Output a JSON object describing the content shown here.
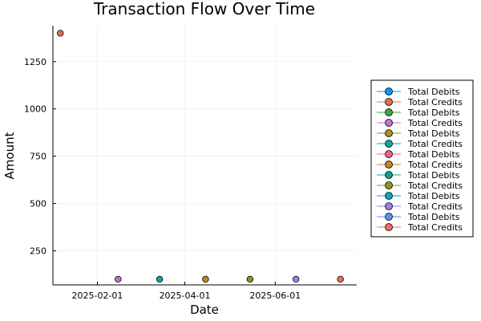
{
  "chart_data": {
    "type": "scatter",
    "title": "Transaction Flow Over Time",
    "xlabel": "Date",
    "ylabel": "Amount",
    "xlim": [
      "2025-01-02",
      "2025-07-26"
    ],
    "ylim": [
      70,
      1440
    ],
    "x_ticks": [
      {
        "value": "2025-02-01",
        "label": "2025-02-01"
      },
      {
        "value": "2025-04-01",
        "label": "2025-04-01"
      },
      {
        "value": "2025-06-01",
        "label": "2025-06-01"
      }
    ],
    "y_ticks": [
      {
        "value": 250,
        "label": "250"
      },
      {
        "value": 500,
        "label": "500"
      },
      {
        "value": 750,
        "label": "750"
      },
      {
        "value": 1000,
        "label": "1000"
      },
      {
        "value": 1250,
        "label": "1250"
      }
    ],
    "grid": true,
    "legend_position": "right",
    "series": [
      {
        "name": "Total Debits",
        "color": "#009AFA",
        "points": []
      },
      {
        "name": "Total Credits",
        "color": "#E36F47",
        "points": [
          {
            "x": "2025-01-07",
            "y": 1400
          }
        ]
      },
      {
        "name": "Total Debits",
        "color": "#3EA44E",
        "points": []
      },
      {
        "name": "Total Credits",
        "color": "#C371D2",
        "points": [
          {
            "x": "2025-02-15",
            "y": 100
          }
        ]
      },
      {
        "name": "Total Debits",
        "color": "#AC8E18",
        "points": []
      },
      {
        "name": "Total Credits",
        "color": "#00AAAE",
        "points": [
          {
            "x": "2025-03-15",
            "y": 100
          }
        ]
      },
      {
        "name": "Total Debits",
        "color": "#ED5E93",
        "points": []
      },
      {
        "name": "Total Credits",
        "color": "#C68225",
        "points": [
          {
            "x": "2025-04-15",
            "y": 100
          }
        ]
      },
      {
        "name": "Total Debits",
        "color": "#00A98D",
        "points": []
      },
      {
        "name": "Total Credits",
        "color": "#8E971D",
        "points": [
          {
            "x": "2025-05-15",
            "y": 100
          }
        ]
      },
      {
        "name": "Total Debits",
        "color": "#00A9CD",
        "points": []
      },
      {
        "name": "Total Credits",
        "color": "#9B7FE9",
        "points": [
          {
            "x": "2025-06-15",
            "y": 100
          }
        ]
      },
      {
        "name": "Total Debits",
        "color": "#618DF6",
        "points": []
      },
      {
        "name": "Total Credits",
        "color": "#F16C64",
        "points": [
          {
            "x": "2025-07-15",
            "y": 100
          }
        ]
      }
    ]
  }
}
